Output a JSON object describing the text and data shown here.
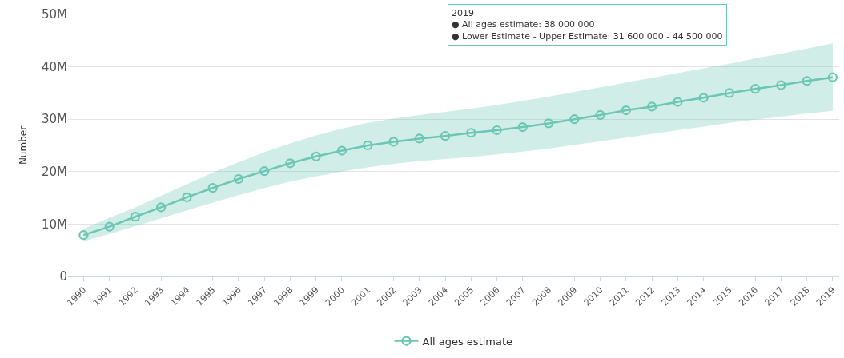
{
  "chart_data": {
    "type": "line",
    "ylabel": "Number",
    "categories": [
      "1990",
      "1991",
      "1992",
      "1993",
      "1994",
      "1995",
      "1996",
      "1997",
      "1998",
      "1999",
      "2000",
      "2001",
      "2002",
      "2003",
      "2004",
      "2005",
      "2006",
      "2007",
      "2008",
      "2009",
      "2010",
      "2011",
      "2012",
      "2013",
      "2014",
      "2015",
      "2016",
      "2017",
      "2018",
      "2019"
    ],
    "series": [
      {
        "name": "All ages estimate",
        "color": "#6cc6b4",
        "values": [
          7900000,
          9500000,
          11400000,
          13200000,
          15100000,
          16900000,
          18600000,
          20100000,
          21600000,
          22900000,
          24000000,
          25000000,
          25700000,
          26300000,
          26800000,
          27400000,
          27900000,
          28500000,
          29200000,
          30000000,
          30800000,
          31700000,
          32400000,
          33300000,
          34100000,
          35000000,
          35800000,
          36500000,
          37300000,
          38000000
        ],
        "lower": [
          6700000,
          8100000,
          9600000,
          11100000,
          12600000,
          14100000,
          15500000,
          16900000,
          18100000,
          19100000,
          20000000,
          20800000,
          21500000,
          22000000,
          22400000,
          22800000,
          23300000,
          23800000,
          24400000,
          25100000,
          25800000,
          26500000,
          27200000,
          27900000,
          28600000,
          29300000,
          29900000,
          30500000,
          31100000,
          31600000
        ],
        "upper": [
          9100000,
          11200000,
          13200000,
          15400000,
          17600000,
          19800000,
          21800000,
          23700000,
          25400000,
          26900000,
          28200000,
          29300000,
          30100000,
          30800000,
          31400000,
          32000000,
          32700000,
          33500000,
          34300000,
          35200000,
          36100000,
          37000000,
          37900000,
          38800000,
          39700000,
          40600000,
          41600000,
          42500000,
          43500000,
          44500000
        ]
      }
    ],
    "ylim": [
      0,
      50000000
    ],
    "yticks": [
      {
        "value": 0,
        "label": "0"
      },
      {
        "value": 10000000,
        "label": "10M"
      },
      {
        "value": 20000000,
        "label": "20M"
      },
      {
        "value": 30000000,
        "label": "30M"
      },
      {
        "value": 40000000,
        "label": "40M"
      },
      {
        "value": 50000000,
        "label": "50M"
      }
    ],
    "annotations": [
      "2019\n● All ages estimate: 38 000 000\n● Lower Estimate - Upper Estimate: 31 600 000 - 44 500 000"
    ],
    "grid": "y",
    "legend": "bottom",
    "marker": "circle",
    "line_style": "solid"
  }
}
